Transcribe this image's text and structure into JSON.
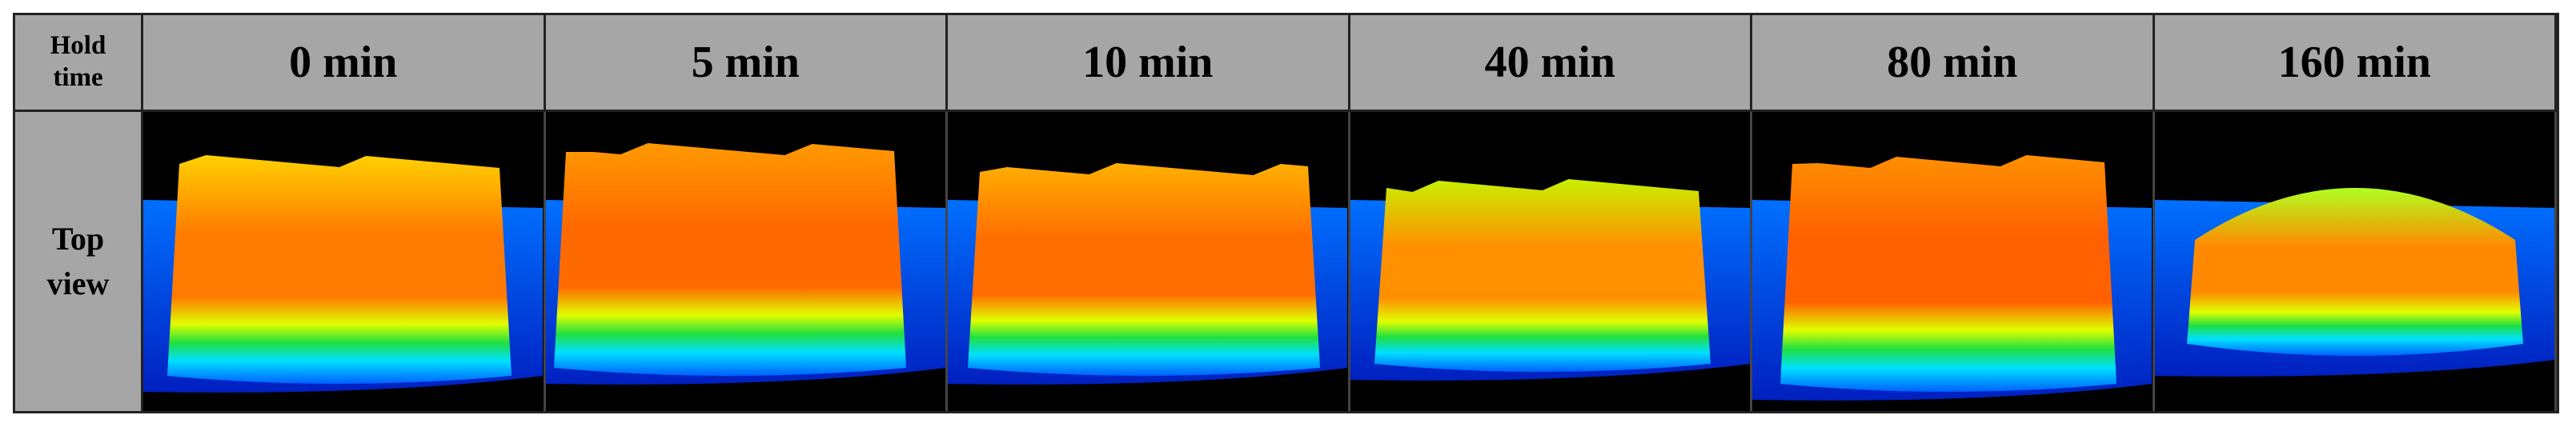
{
  "header": {
    "label": "Hold time",
    "columns": [
      "0 min",
      "5 min",
      "10 min",
      "40 min",
      "80 min",
      "160 min"
    ]
  },
  "rows": [
    {
      "label": "Top view"
    }
  ]
}
